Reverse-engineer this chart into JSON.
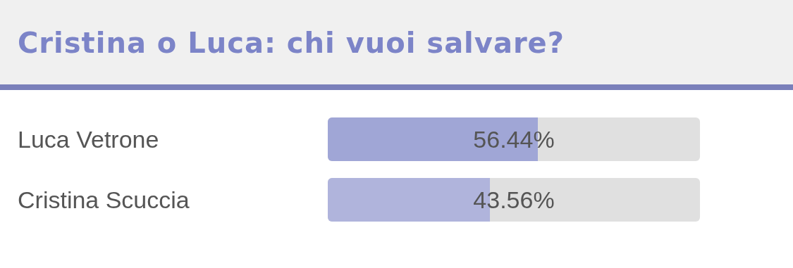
{
  "chart_data": {
    "type": "bar",
    "orientation": "horizontal",
    "title": "Cristina o Luca: chi vuoi salvare?",
    "categories": [
      "Luca Vetrone",
      "Cristina Scuccia"
    ],
    "values": [
      56.44,
      43.56
    ],
    "colors": [
      "#a0a6d6",
      "#b0b4dc"
    ],
    "value_labels": [
      "56.44%",
      "43.56%"
    ],
    "xlim": [
      0,
      100
    ],
    "tick_labels": "y"
  }
}
